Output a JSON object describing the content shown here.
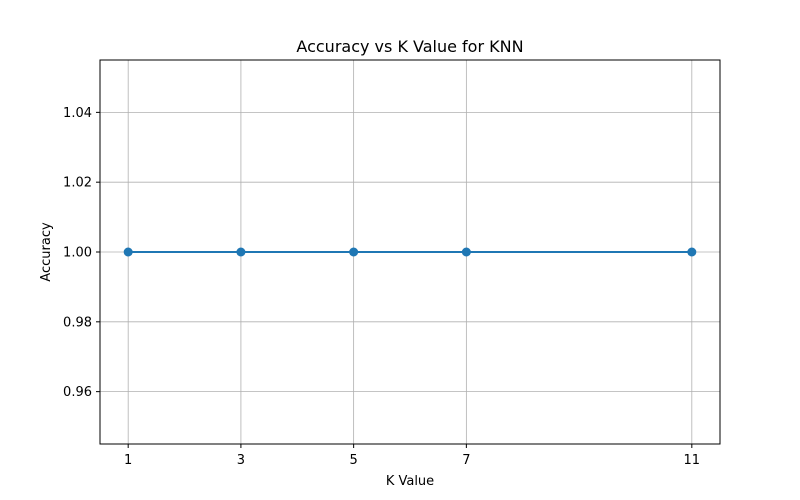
{
  "chart_data": {
    "type": "line",
    "title": "Accuracy vs K Value for KNN",
    "xlabel": "K Value",
    "ylabel": "Accuracy",
    "x": [
      1,
      3,
      5,
      7,
      11
    ],
    "series": [
      {
        "values": [
          1.0,
          1.0,
          1.0,
          1.0,
          1.0
        ],
        "color": "#1f77b4",
        "marker": "circle"
      }
    ],
    "xticks": [
      "1",
      "3",
      "5",
      "7",
      "11"
    ],
    "yticks": [
      "0.96",
      "0.98",
      "1.00",
      "1.02",
      "1.04"
    ],
    "xlim": [
      0.5,
      11.5
    ],
    "ylim": [
      0.945,
      1.055
    ],
    "grid": true
  }
}
